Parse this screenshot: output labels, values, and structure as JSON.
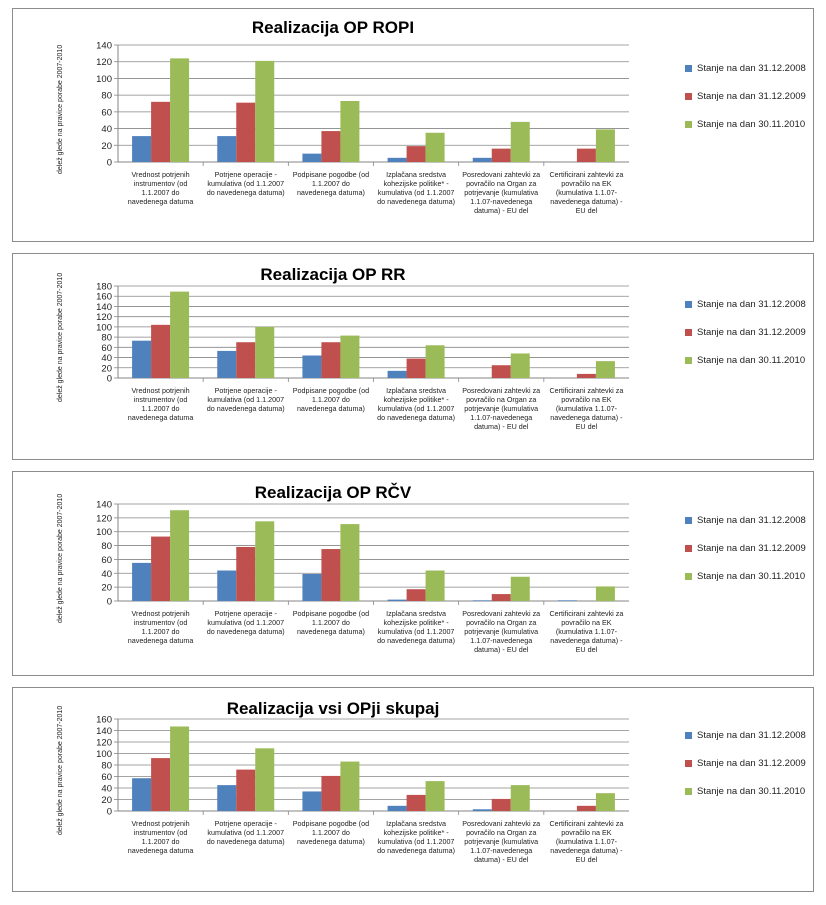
{
  "colors": {
    "s1": "#4f81bd",
    "s2": "#c0504d",
    "s3": "#9bbb59",
    "grid": "#868686",
    "axis": "#868686"
  },
  "chart_data": [
    {
      "type": "bar",
      "title": "Realizacija OP ROPI",
      "ylabel": "delež glede na pravice porabe 2007-2010",
      "ylim": [
        0,
        140
      ],
      "yticks": [
        0,
        20,
        40,
        60,
        80,
        100,
        120,
        140
      ],
      "grid": true,
      "legend_position": "right",
      "categories": [
        "Vrednost potrjenih instrumentov (od 1.1.2007 do navedenega datuma",
        "Potrjene operacije - kumulativa (od 1.1.2007 do navedenega datuma)",
        "Podpisane pogodbe (od 1.1.2007 do navedenega datuma)",
        "Izplačana sredstva kohezijske politike* - kumulativa (od 1.1.2007 do navedenega datuma)",
        "Posredovani zahtevki za povračilo na Organ za potrjevanje (kumulativa 1.1.07-navedenega datuma) - EU del",
        "Certificirani zahtevki za povračilo na EK (kumulativa 1.1.07-navedenega datuma) - EU del"
      ],
      "series": [
        {
          "name": "Stanje na dan 31.12.2008",
          "values": [
            31,
            31,
            10,
            5,
            5,
            0
          ]
        },
        {
          "name": "Stanje na dan 31.12.2009",
          "values": [
            72,
            71,
            37,
            19,
            16,
            16
          ]
        },
        {
          "name": "Stanje na dan 30.11.2010",
          "values": [
            124,
            121,
            73,
            35,
            48,
            39
          ]
        }
      ]
    },
    {
      "type": "bar",
      "title": "Realizacija OP RR",
      "ylabel": "delež glede na pravice porabe 2007-2010",
      "ylim": [
        0,
        180
      ],
      "yticks": [
        0,
        20,
        40,
        60,
        80,
        100,
        120,
        140,
        160,
        180
      ],
      "grid": true,
      "legend_position": "right",
      "categories": [
        "Vrednost potrjenih instrumentov (od 1.1.2007 do navedenega datuma",
        "Potrjene operacije - kumulativa (od 1.1.2007 do navedenega datuma)",
        "Podpisane pogodbe (od 1.1.2007 do navedenega datuma)",
        "Izplačana sredstva kohezijske politike* - kumulativa (od 1.1.2007 do navedenega datuma)",
        "Posredovani zahtevki za povračilo na Organ za potrjevanje (kumulativa 1.1.07-navedenega datuma) - EU del",
        "Certificirani zahtevki za povračilo na EK (kumulativa 1.1.07-navedenega datuma) - EU del"
      ],
      "series": [
        {
          "name": "Stanje na dan 31.12.2008",
          "values": [
            73,
            53,
            44,
            14,
            0,
            0
          ]
        },
        {
          "name": "Stanje na dan 31.12.2009",
          "values": [
            104,
            70,
            70,
            38,
            25,
            8
          ]
        },
        {
          "name": "Stanje na dan 30.11.2010",
          "values": [
            169,
            100,
            83,
            64,
            48,
            33
          ]
        }
      ]
    },
    {
      "type": "bar",
      "title": "Realizacija OP RČV",
      "ylabel": "delež glede na pravice porabe 2007-2010",
      "ylim": [
        0,
        140
      ],
      "yticks": [
        0,
        20,
        40,
        60,
        80,
        100,
        120,
        140
      ],
      "grid": true,
      "legend_position": "right",
      "categories": [
        "Vrednost potrjenih instrumentov (od 1.1.2007 do navedenega datuma",
        "Potrjene operacije - kumulativa (od 1.1.2007 do navedenega datuma)",
        "Podpisane pogodbe (od 1.1.2007 do navedenega datuma)",
        "Izplačana sredstva kohezijske politike* - kumulativa (od 1.1.2007 do navedenega datuma)",
        "Posredovani zahtevki za povračilo na Organ za potrjevanje (kumulativa 1.1.07-navedenega datuma) - EU del",
        "Certificirani zahtevki za povračilo na EK (kumulativa 1.1.07-navedenega datuma) - EU del"
      ],
      "series": [
        {
          "name": "Stanje na dan 31.12.2008",
          "values": [
            55,
            44,
            39,
            2,
            1,
            1
          ]
        },
        {
          "name": "Stanje na dan 31.12.2009",
          "values": [
            93,
            78,
            75,
            17,
            10,
            0
          ]
        },
        {
          "name": "Stanje na dan 30.11.2010",
          "values": [
            131,
            115,
            111,
            44,
            35,
            21
          ]
        }
      ]
    },
    {
      "type": "bar",
      "title": "Realizacija vsi OPji skupaj",
      "ylabel": "delež glede na pravice porabe 2007-2010",
      "ylim": [
        0,
        160
      ],
      "yticks": [
        0,
        20,
        40,
        60,
        80,
        100,
        120,
        140,
        160
      ],
      "grid": true,
      "legend_position": "right",
      "categories": [
        "Vrednost potrjenih instrumentov (od 1.1.2007 do navedenega datuma",
        "Potrjene operacije - kumulativa (od 1.1.2007 do navedenega datuma)",
        "Podpisane pogodbe (od 1.1.2007 do navedenega datuma)",
        "Izplačana sredstva kohezijske politike* - kumulativa (od 1.1.2007 do navedenega datuma)",
        "Posredovani zahtevki za povračilo na Organ za potrjevanje (kumulativa 1.1.07-navedenega datuma) - EU del",
        "Certificirani zahtevki za povračilo na EK (kumulativa 1.1.07-navedenega datuma) - EU del"
      ],
      "series": [
        {
          "name": "Stanje na dan 31.12.2008",
          "values": [
            57,
            45,
            34,
            9,
            3,
            0
          ]
        },
        {
          "name": "Stanje na dan 31.12.2009",
          "values": [
            92,
            72,
            61,
            28,
            21,
            9
          ]
        },
        {
          "name": "Stanje na dan 30.11.2010",
          "values": [
            147,
            109,
            86,
            52,
            45,
            31
          ]
        }
      ]
    }
  ]
}
